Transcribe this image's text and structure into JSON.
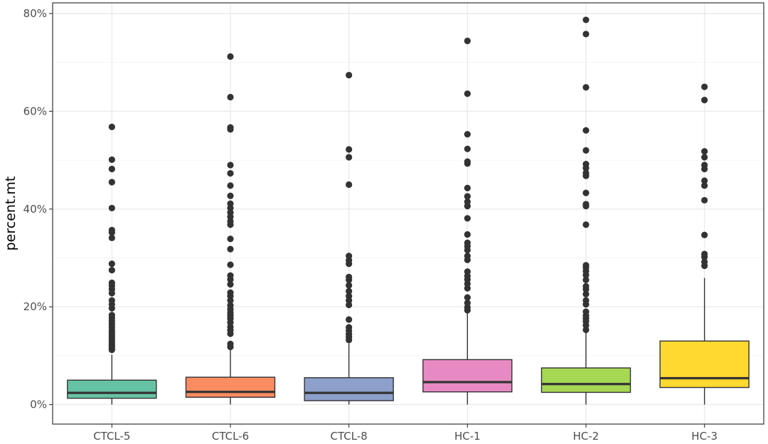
{
  "chart_data": {
    "type": "boxplot",
    "title": "",
    "xlabel": "",
    "ylabel": "percent.mt",
    "ylim": [
      -4,
      80
    ],
    "y_ticks": [
      0,
      20,
      40,
      60,
      80
    ],
    "y_tick_labels": [
      "0%",
      "20%",
      "40%",
      "60%",
      "80%"
    ],
    "grid": true,
    "legend": "none",
    "categories": [
      "CTCL-5",
      "CTCL-6",
      "CTCL-8",
      "HC-1",
      "HC-2",
      "HC-3"
    ],
    "boxes": [
      {
        "name": "CTCL-5",
        "color": "#66C2A5",
        "min": 0,
        "q1": 1.3,
        "median": 2.4,
        "q3": 5.0,
        "max": 10.2,
        "outliers": [
          11.2,
          11.6,
          12.0,
          12.4,
          12.8,
          13.3,
          13.8,
          14.3,
          14.8,
          15.3,
          15.9,
          16.5,
          17.1,
          17.7,
          18.3,
          19.7,
          20.5,
          21.3,
          22.8,
          23.6,
          24.3,
          24.9,
          27.5,
          28.8,
          34.1,
          35.2,
          35.7,
          40.2,
          45.5,
          48.2,
          50.1,
          56.8
        ]
      },
      {
        "name": "CTCL-6",
        "color": "#FC8D62",
        "min": 0,
        "q1": 1.5,
        "median": 2.6,
        "q3": 5.6,
        "max": 11.4,
        "outliers": [
          11.8,
          12.4,
          14.5,
          15.2,
          15.9,
          16.8,
          17.6,
          18.2,
          18.8,
          19.5,
          20.3,
          21.3,
          22.2,
          22.9,
          24.6,
          25.6,
          26.4,
          28.6,
          31.8,
          33.9,
          36.8,
          37.5,
          38.4,
          39.3,
          40.2,
          41.1,
          42.7,
          44.8,
          47.3,
          49.0,
          56.3,
          56.7,
          62.9,
          71.2
        ]
      },
      {
        "name": "CTCL-8",
        "color": "#8DA0CB",
        "min": 0,
        "q1": 0.8,
        "median": 2.4,
        "q3": 5.5,
        "max": 12.5,
        "outliers": [
          13.2,
          13.8,
          14.4,
          15.1,
          15.8,
          17.4,
          20.4,
          21.3,
          22.2,
          23.2,
          24.4,
          25.5,
          26.1,
          28.8,
          29.5,
          30.4,
          45.0,
          50.6,
          52.2,
          67.4
        ]
      },
      {
        "name": "HC-1",
        "color": "#E78AC3",
        "min": 0,
        "q1": 2.6,
        "median": 4.6,
        "q3": 9.2,
        "max": 19.0,
        "outliers": [
          19.3,
          19.9,
          20.8,
          21.9,
          23.8,
          24.7,
          25.6,
          26.3,
          27.2,
          29.6,
          30.4,
          31.6,
          32.4,
          33.1,
          34.8,
          38.1,
          40.6,
          41.5,
          42.6,
          44.3,
          49.3,
          49.7,
          52.3,
          55.3,
          63.6,
          74.4
        ]
      },
      {
        "name": "HC-2",
        "color": "#A6D854",
        "min": 0,
        "q1": 2.5,
        "median": 4.2,
        "q3": 7.5,
        "max": 14.8,
        "outliers": [
          15.3,
          16.2,
          17.0,
          17.6,
          18.2,
          19.0,
          20.5,
          21.3,
          22.6,
          23.6,
          24.2,
          25.5,
          26.5,
          27.3,
          28.0,
          28.5,
          36.8,
          40.6,
          41.0,
          43.3,
          46.8,
          47.4,
          48.4,
          49.2,
          52.0,
          56.1,
          64.9,
          75.8,
          78.7
        ]
      },
      {
        "name": "HC-3",
        "color": "#FFD92F",
        "min": 0,
        "q1": 3.5,
        "median": 5.4,
        "q3": 13.0,
        "max": 25.9,
        "outliers": [
          28.4,
          29.2,
          30.2,
          30.8,
          34.7,
          41.8,
          44.8,
          45.8,
          48.2,
          49.0,
          50.6,
          51.8,
          62.3,
          65.0
        ]
      }
    ]
  }
}
